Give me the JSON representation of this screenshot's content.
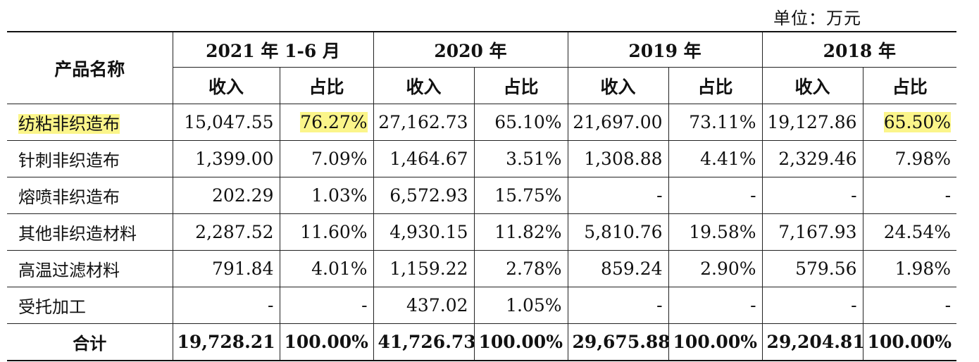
{
  "unit_label": "单位：万元",
  "header": {
    "product_name": "产品名称",
    "periods": [
      "2021 年 1-6 月",
      "2020 年",
      "2019 年",
      "2018 年"
    ],
    "income": "收入",
    "share": "占比"
  },
  "rows": [
    {
      "name": "纺粘非织造布",
      "v": [
        "15,047.55",
        "76.27%",
        "27,162.73",
        "65.10%",
        "21,697.00",
        "73.11%",
        "19,127.86",
        "65.50%"
      ]
    },
    {
      "name": "针刺非织造布",
      "v": [
        "1,399.00",
        "7.09%",
        "1,464.67",
        "3.51%",
        "1,308.88",
        "4.41%",
        "2,329.46",
        "7.98%"
      ]
    },
    {
      "name": "熔喷非织造布",
      "v": [
        "202.29",
        "1.03%",
        "6,572.93",
        "15.75%",
        "-",
        "-",
        "-",
        "-"
      ]
    },
    {
      "name": "其他非织造材料",
      "v": [
        "2,287.52",
        "11.60%",
        "4,930.15",
        "11.82%",
        "5,810.76",
        "19.58%",
        "7,167.93",
        "24.54%"
      ]
    },
    {
      "name": "高温过滤材料",
      "v": [
        "791.84",
        "4.01%",
        "1,159.22",
        "2.78%",
        "859.24",
        "2.90%",
        "579.56",
        "1.98%"
      ]
    },
    {
      "name": "受托加工",
      "v": [
        "-",
        "-",
        "437.02",
        "1.05%",
        "-",
        "-",
        "-",
        "-"
      ]
    }
  ],
  "total": {
    "name": "合计",
    "v": [
      "19,728.21",
      "100.00%",
      "41,726.73",
      "100.00%",
      "29,675.88",
      "100.00%",
      "29,204.81",
      "100.00%"
    ]
  },
  "highlight_color": "#fbf58a"
}
